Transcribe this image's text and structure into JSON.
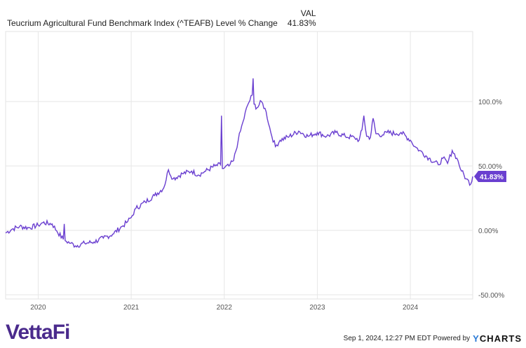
{
  "header": {
    "col_label": "VAL",
    "series_name": "Teucrium Agricultural Fund Benchmark Index (^TEAFB) Level % Change",
    "series_value": "41.83%"
  },
  "colors": {
    "line": "#6a3fd0",
    "grid": "#e6e6e6",
    "tag": "#6a3fd0"
  },
  "chart_data": {
    "type": "line",
    "title": "Teucrium Agricultural Fund Benchmark Index (^TEAFB) Level % Change",
    "xlabel": "",
    "ylabel": "",
    "xlim": [
      2019.65,
      2024.67
    ],
    "ylim": [
      -50,
      110
    ],
    "x_ticks": [
      {
        "v": 2020,
        "label": "2020"
      },
      {
        "v": 2021,
        "label": "2021"
      },
      {
        "v": 2022,
        "label": "2022"
      },
      {
        "v": 2023,
        "label": "2023"
      },
      {
        "v": 2024,
        "label": "2024"
      }
    ],
    "y_ticks": [
      {
        "v": 100,
        "label": "100.0%"
      },
      {
        "v": 50,
        "label": "50.00%"
      },
      {
        "v": 0,
        "label": "0.00%"
      },
      {
        "v": -50,
        "label": "-50.00%"
      }
    ],
    "last_value_label": "41.83%",
    "series": [
      {
        "name": "^TEAFB Level % Change",
        "points": [
          [
            2019.65,
            -2
          ],
          [
            2019.72,
            1
          ],
          [
            2019.8,
            3
          ],
          [
            2019.9,
            2
          ],
          [
            2020.0,
            4
          ],
          [
            2020.05,
            6
          ],
          [
            2020.15,
            5
          ],
          [
            2020.2,
            -0.5
          ],
          [
            2020.27,
            -7
          ],
          [
            2020.28,
            5
          ],
          [
            2020.29,
            -8
          ],
          [
            2020.35,
            -10
          ],
          [
            2020.4,
            -12
          ],
          [
            2020.5,
            -10
          ],
          [
            2020.6,
            -9
          ],
          [
            2020.7,
            -6
          ],
          [
            2020.8,
            -3
          ],
          [
            2020.9,
            3
          ],
          [
            2020.95,
            6
          ],
          [
            2021.0,
            10
          ],
          [
            2021.05,
            17
          ],
          [
            2021.15,
            22
          ],
          [
            2021.25,
            27
          ],
          [
            2021.35,
            33
          ],
          [
            2021.4,
            47
          ],
          [
            2021.45,
            40
          ],
          [
            2021.55,
            44
          ],
          [
            2021.65,
            46
          ],
          [
            2021.72,
            43
          ],
          [
            2021.8,
            46
          ],
          [
            2021.9,
            50
          ],
          [
            2021.96,
            51
          ],
          [
            2021.97,
            89
          ],
          [
            2021.98,
            48
          ],
          [
            2022.05,
            50
          ],
          [
            2022.1,
            54
          ],
          [
            2022.15,
            70
          ],
          [
            2022.2,
            84
          ],
          [
            2022.25,
            97
          ],
          [
            2022.3,
            105
          ],
          [
            2022.31,
            118
          ],
          [
            2022.32,
            98
          ],
          [
            2022.35,
            95
          ],
          [
            2022.4,
            100
          ],
          [
            2022.45,
            92
          ],
          [
            2022.5,
            76
          ],
          [
            2022.55,
            65
          ],
          [
            2022.6,
            70
          ],
          [
            2022.7,
            73
          ],
          [
            2022.8,
            77
          ],
          [
            2022.9,
            73
          ],
          [
            2023.0,
            76
          ],
          [
            2023.1,
            73
          ],
          [
            2023.2,
            76
          ],
          [
            2023.3,
            73
          ],
          [
            2023.4,
            72
          ],
          [
            2023.45,
            70
          ],
          [
            2023.48,
            78
          ],
          [
            2023.5,
            89
          ],
          [
            2023.53,
            73
          ],
          [
            2023.57,
            72
          ],
          [
            2023.6,
            87
          ],
          [
            2023.63,
            75
          ],
          [
            2023.7,
            74
          ],
          [
            2023.75,
            76
          ],
          [
            2023.85,
            75
          ],
          [
            2023.9,
            76
          ],
          [
            2024.0,
            70
          ],
          [
            2024.05,
            65
          ],
          [
            2024.1,
            62
          ],
          [
            2024.2,
            56
          ],
          [
            2024.3,
            51
          ],
          [
            2024.35,
            56
          ],
          [
            2024.4,
            52
          ],
          [
            2024.45,
            62
          ],
          [
            2024.5,
            56
          ],
          [
            2024.55,
            46
          ],
          [
            2024.6,
            40
          ],
          [
            2024.65,
            36
          ],
          [
            2024.67,
            41.83
          ]
        ]
      }
    ]
  },
  "footer": {
    "timestamp": "Sep 1, 2024, 12:27 PM EDT Powered by",
    "brand_logo": "VettaFi",
    "ycharts_y": "Y",
    "ycharts_rest": "CHARTS"
  }
}
